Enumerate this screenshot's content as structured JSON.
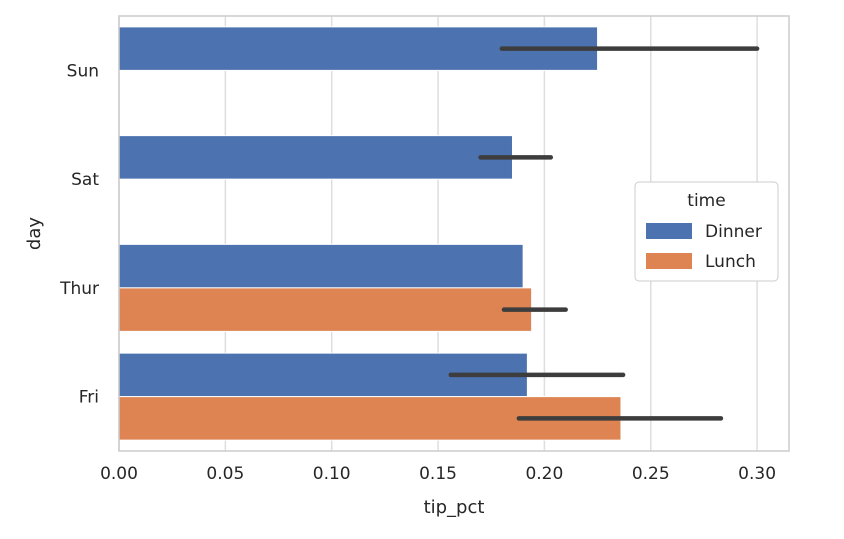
{
  "chart_data": {
    "type": "bar",
    "orientation": "horizontal",
    "title": "",
    "xlabel": "tip_pct",
    "ylabel": "day",
    "categories": [
      "Sun",
      "Sat",
      "Thur",
      "Fri"
    ],
    "xlim": [
      0.0,
      0.315
    ],
    "xticks": [
      "0.00",
      "0.05",
      "0.10",
      "0.15",
      "0.20",
      "0.25",
      "0.30"
    ],
    "grid": "vertical",
    "series": [
      {
        "name": "Dinner",
        "color": "#4C72B0",
        "values": [
          0.225,
          0.185,
          0.19,
          0.192
        ],
        "ci": [
          [
            0.18,
            0.3
          ],
          [
            0.17,
            0.203
          ],
          [
            null,
            null
          ],
          [
            0.156,
            0.237
          ]
        ]
      },
      {
        "name": "Lunch",
        "color": "#DD8452",
        "values": [
          null,
          null,
          0.194,
          0.236
        ],
        "ci": [
          [
            null,
            null
          ],
          [
            null,
            null
          ],
          [
            0.181,
            0.21
          ],
          [
            0.188,
            0.283
          ]
        ]
      }
    ],
    "legend": {
      "title": "time",
      "placement": "center-right"
    }
  }
}
